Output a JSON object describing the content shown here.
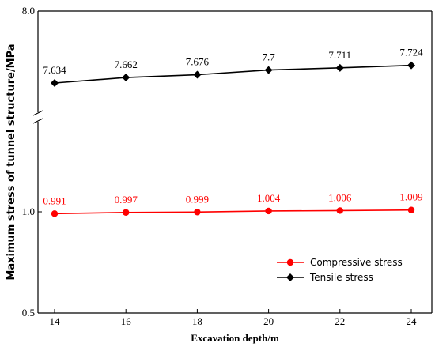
{
  "chart_data": {
    "type": "line",
    "x": [
      14,
      16,
      18,
      20,
      22,
      24
    ],
    "xlabel": "Excavation depth/m",
    "ylabel": "Maximum stress of tunnel structure/MPa",
    "x_ticks": [
      "14",
      "16",
      "18",
      "20",
      "22",
      "24"
    ],
    "y_ticks_lower": [
      "0.5",
      "1.0"
    ],
    "y_ticks_upper": [
      "8.0"
    ],
    "axis_break": true,
    "grid": false,
    "legend_position": "bottom-right",
    "series": [
      {
        "name": "Compressive stress",
        "color": "#ff0000",
        "marker": "circle",
        "segment": "lower",
        "values": [
          0.991,
          0.997,
          0.999,
          1.004,
          1.006,
          1.009
        ],
        "labels": [
          "0.991",
          "0.997",
          "0.999",
          "1.004",
          "1.006",
          "1.009"
        ]
      },
      {
        "name": "Tensile stress",
        "color": "#000000",
        "marker": "diamond",
        "segment": "upper",
        "values": [
          7.634,
          7.662,
          7.676,
          7.7,
          7.711,
          7.724
        ],
        "labels": [
          "7.634",
          "7.662",
          "7.676",
          "7.7",
          "7.711",
          "7.724"
        ]
      }
    ]
  }
}
